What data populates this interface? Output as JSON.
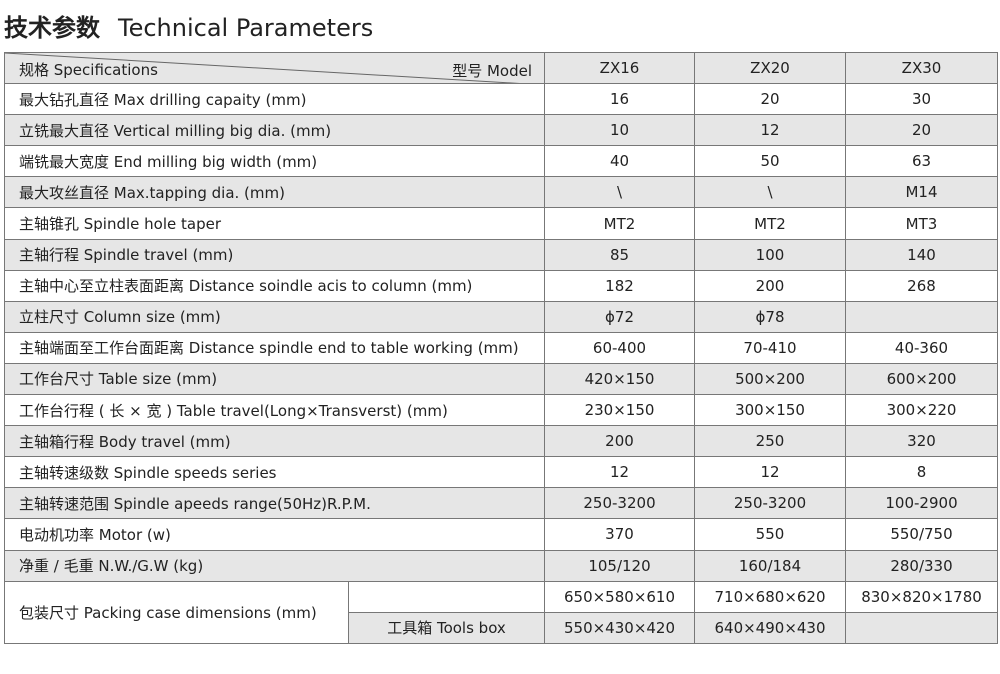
{
  "title": {
    "cn": "技术参数",
    "en": "Technical Parameters"
  },
  "header": {
    "spec": "规格 Specifications",
    "model": "型号   Model",
    "models": [
      "ZX16",
      "ZX20",
      "ZX30"
    ]
  },
  "rows": [
    {
      "label": "最大钻孔直径  Max drilling capaity (mm)",
      "values": [
        "16",
        "20",
        "30"
      ]
    },
    {
      "label": "立铣最大直径  Vertical milling big dia. (mm)",
      "values": [
        "10",
        "12",
        "20"
      ]
    },
    {
      "label": "端铣最大宽度  End milling big width (mm)",
      "values": [
        "40",
        "50",
        "63"
      ]
    },
    {
      "label": "最大攻丝直径  Max.tapping dia. (mm)",
      "values": [
        "\\",
        "\\",
        "M14"
      ]
    },
    {
      "label": "主轴锥孔  Spindle hole taper",
      "values": [
        "MT2",
        "MT2",
        "MT3"
      ]
    },
    {
      "label": "主轴行程  Spindle travel (mm)",
      "values": [
        "85",
        "100",
        "140"
      ]
    },
    {
      "label": "主轴中心至立柱表面距离  Distance soindle acis to column (mm)",
      "values": [
        "182",
        "200",
        "268"
      ]
    },
    {
      "label": "立柱尺寸  Column size (mm)",
      "values": [
        "ϕ72",
        "ϕ78",
        ""
      ]
    },
    {
      "label": "主轴端面至工作台面距离  Distance spindle end to table working (mm)",
      "values": [
        "60-400",
        "70-410",
        "40-360"
      ]
    },
    {
      "label": "工作台尺寸  Table size (mm)",
      "values": [
        "420×150",
        "500×200",
        "600×200"
      ]
    },
    {
      "label": "工作台行程 ( 长 × 宽 )   Table travel(Long×Transverst) (mm)",
      "values": [
        "230×150",
        "300×150",
        "300×220"
      ]
    },
    {
      "label": "主轴箱行程  Body travel (mm)",
      "values": [
        "200",
        "250",
        "320"
      ]
    },
    {
      "label": "主轴转速级数  Spindle speeds series",
      "values": [
        "12",
        "12",
        "8"
      ]
    },
    {
      "label": "主轴转速范围  Spindle apeeds range(50Hz)R.P.M.",
      "values": [
        "250-3200",
        "250-3200",
        "100-2900"
      ]
    },
    {
      "label": "电动机功率  Motor (w)",
      "values": [
        "370",
        "550",
        "550/750"
      ]
    },
    {
      "label": "净重 / 毛重  N.W./G.W (kg)",
      "values": [
        "105/120",
        "160/184",
        "280/330"
      ]
    }
  ],
  "packing": {
    "label": "包装尺寸  Packing case dimensions (mm)",
    "sub": [
      "",
      "工具箱 Tools box"
    ],
    "values": [
      [
        "650×580×610",
        "710×680×620",
        "830×820×1780"
      ],
      [
        "550×430×420",
        "640×490×430",
        ""
      ]
    ]
  }
}
